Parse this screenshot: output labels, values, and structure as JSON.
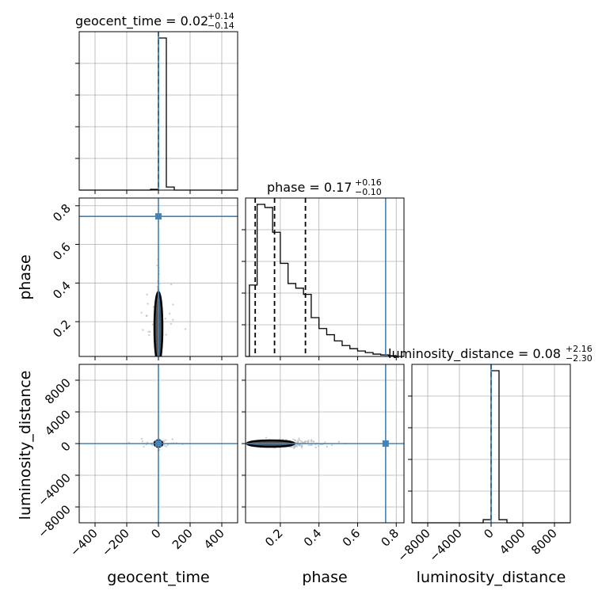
{
  "chart_data": {
    "type": "corner",
    "parameters": [
      "geocent_time",
      "phase",
      "luminosity_distance"
    ],
    "axis_labels": {
      "x": [
        "geocent_time",
        "phase",
        "luminosity_distance"
      ],
      "y": [
        "phase",
        "luminosity_distance"
      ]
    },
    "titles": [
      {
        "param": "geocent_time",
        "text": "geocent_time = 0.02",
        "plus": "+0.14",
        "minus": "−0.14"
      },
      {
        "param": "phase",
        "text": "phase = 0.17",
        "plus": "+0.16",
        "minus": "−0.10"
      },
      {
        "param": "luminosity_distance",
        "text": "luminosity_distance = 0.08",
        "plus": "+2.16",
        "minus": "−2.30"
      }
    ],
    "ranges": {
      "geocent_time": [
        -500,
        500
      ],
      "phase": [
        0.02,
        0.84
      ],
      "luminosity_distance": [
        -10000,
        10000
      ]
    },
    "ticks": {
      "geocent_time": {
        "values": [
          -400,
          -200,
          0,
          200,
          400
        ],
        "labels": [
          "−400",
          "−200",
          "0",
          "200",
          "400"
        ]
      },
      "phase_x": {
        "values": [
          0.2,
          0.4,
          0.6,
          0.8
        ],
        "labels": [
          "0.2",
          "0.4",
          "0.6",
          "0.8"
        ]
      },
      "phase_y": {
        "values": [
          0.2,
          0.4,
          0.6,
          0.8
        ],
        "labels": [
          "0.2",
          "0.4",
          "0.6",
          "0.8"
        ]
      },
      "luminosity_distance": {
        "values": [
          -8000,
          -4000,
          0,
          4000,
          8000
        ],
        "labels": [
          "−8000",
          "−4000",
          "0",
          "4000",
          "8000"
        ]
      }
    },
    "truths": {
      "geocent_time": 0,
      "phase": 0.745,
      "luminosity_distance": 0
    },
    "quantiles": {
      "geocent_time": [
        -0.12,
        0.02,
        0.16
      ],
      "phase": [
        0.07,
        0.17,
        0.33
      ],
      "luminosity_distance": [
        -2.22,
        0.08,
        2.24
      ]
    },
    "histograms": {
      "geocent_time": {
        "edges": [
          -500,
          -450,
          -400,
          -350,
          -300,
          -250,
          -200,
          -150,
          -100,
          -50,
          0,
          50,
          100,
          150,
          200,
          250,
          300,
          350,
          400,
          450,
          500
        ],
        "counts": [
          0,
          0,
          0,
          0,
          0,
          0,
          0,
          0,
          0,
          0.005,
          0.99,
          0.02,
          0,
          0,
          0,
          0,
          0,
          0,
          0,
          0
        ]
      },
      "phase": {
        "edges": [
          0.0,
          0.04,
          0.08,
          0.12,
          0.16,
          0.2,
          0.24,
          0.28,
          0.32,
          0.36,
          0.4,
          0.44,
          0.48,
          0.52,
          0.56,
          0.6,
          0.64,
          0.68,
          0.72,
          0.76,
          0.8,
          0.84
        ],
        "counts": [
          0.0,
          0.46,
          0.98,
          0.96,
          0.8,
          0.6,
          0.47,
          0.44,
          0.4,
          0.25,
          0.18,
          0.14,
          0.1,
          0.07,
          0.05,
          0.035,
          0.025,
          0.015,
          0.01,
          0.005,
          0.0
        ]
      },
      "luminosity_distance": {
        "edges": [
          -10000,
          -9000,
          -8000,
          -7000,
          -6000,
          -5000,
          -4000,
          -3000,
          -2000,
          -1000,
          0,
          1000,
          2000,
          3000,
          4000,
          5000,
          6000,
          7000,
          8000,
          9000,
          10000
        ],
        "counts": [
          0,
          0,
          0,
          0,
          0,
          0,
          0,
          0,
          0,
          0.02,
          0.97,
          0.02,
          0,
          0,
          0,
          0,
          0,
          0,
          0,
          0
        ]
      }
    },
    "colors": {
      "truth": "#4682b4",
      "hist": "#000000",
      "points": "#bbbbbb",
      "contour_fill": "#555555"
    },
    "grid": true
  }
}
